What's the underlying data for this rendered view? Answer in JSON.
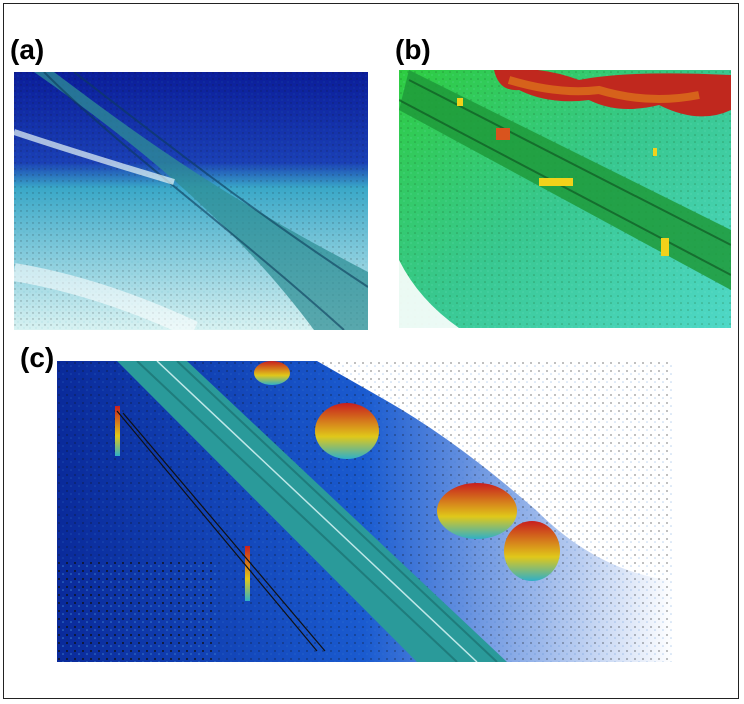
{
  "figure": {
    "panels": [
      {
        "label": "(a)",
        "colormap": "intensity-blue-cyan"
      },
      {
        "label": "(b)",
        "colormap": "elevation-green-yellow-red"
      },
      {
        "label": "(c)",
        "colormap": "elevation-blue-cyan-red"
      }
    ]
  },
  "colors": {
    "deep_blue": "#0a1a8c",
    "cyan": "#3cc8c8",
    "teal_road": "#2a8f8a",
    "green": "#2ecc40",
    "yellow": "#f2d21a",
    "red": "#c81e1e",
    "black_points": "#111111"
  }
}
